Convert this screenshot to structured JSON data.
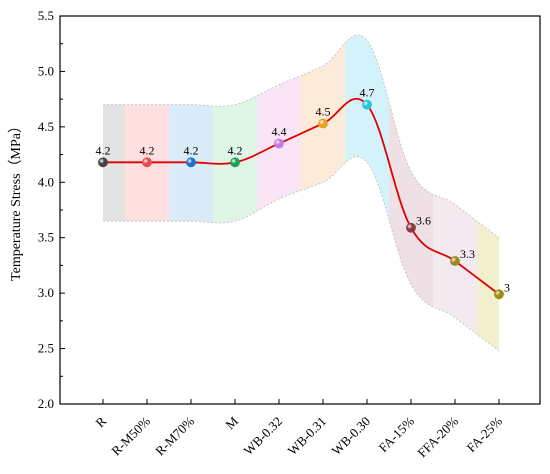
{
  "chart_data": {
    "type": "line",
    "ylabel": "Temperature Stress（MPa）",
    "xlabel": "",
    "ylim": [
      2.0,
      5.5
    ],
    "yticks": [
      "2.0",
      "2.5",
      "3.0",
      "3.5",
      "4.0",
      "4.5",
      "5.0",
      "5.5"
    ],
    "categories": [
      "R",
      "R-M50%",
      "R-M70%",
      "M",
      "WB-0.32",
      "WB-0.31",
      "WB-0.30",
      "FA-15%",
      "FFA-20%",
      "FA-25%"
    ],
    "values": [
      4.18,
      4.18,
      4.18,
      4.18,
      4.35,
      4.53,
      4.7,
      3.59,
      3.29,
      2.99
    ],
    "data_labels": [
      "4.2",
      "4.2",
      "4.2",
      "4.2",
      "4.4",
      "4.5",
      "4.7",
      "3.6",
      "3.3",
      "3"
    ],
    "band_upper": [
      4.7,
      4.7,
      4.7,
      4.7,
      4.88,
      5.05,
      5.28,
      4.1,
      3.8,
      3.5
    ],
    "band_lower": [
      3.65,
      3.65,
      3.65,
      3.65,
      3.85,
      4.0,
      4.18,
      3.08,
      2.78,
      2.48
    ],
    "band_colors": [
      "#d9d9d9",
      "#ffd6d6",
      "#cfe6f7",
      "#d4f2de",
      "#f7dcf3",
      "#fbe4cc",
      "#c6eef8",
      "#ead5de",
      "#efe3ea",
      "#eee9bb"
    ],
    "marker_colors": [
      "#444444",
      "#e34a4a",
      "#1f6fd1",
      "#1fa055",
      "#c878e0",
      "#e8a020",
      "#22c8d8",
      "#8a3a40",
      "#a08a20",
      "#a08a10"
    ],
    "line_color": "#e00000",
    "grid": false
  }
}
